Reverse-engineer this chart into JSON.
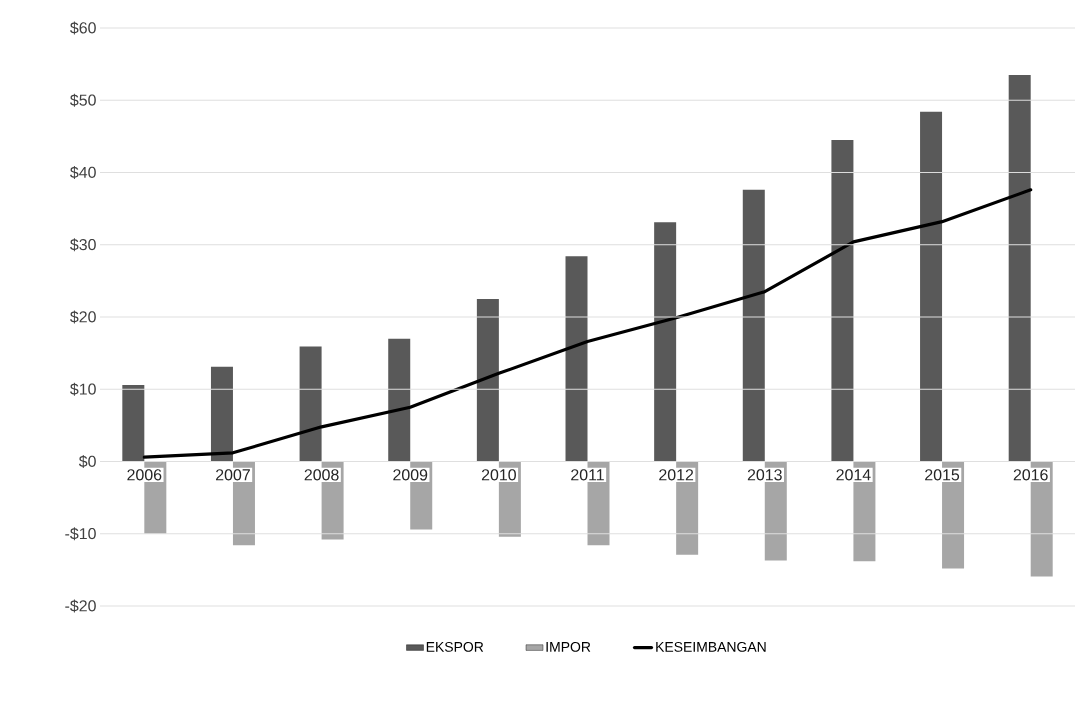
{
  "chart_data": {
    "type": "bar",
    "categories": [
      "2006",
      "2007",
      "2008",
      "2009",
      "2010",
      "2011",
      "2012",
      "2013",
      "2014",
      "2015",
      "2016"
    ],
    "series": [
      {
        "name": "EKSPOR",
        "color": "#595959",
        "values": [
          10.6,
          13.1,
          15.9,
          17.0,
          22.5,
          28.4,
          33.1,
          37.6,
          44.5,
          48.4,
          53.5
        ]
      },
      {
        "name": "IMPOR",
        "color": "#a6a6a6",
        "values": [
          -10.0,
          -11.6,
          -10.8,
          -9.4,
          -10.4,
          -11.6,
          -12.9,
          -13.7,
          -13.8,
          -14.8,
          -15.9
        ]
      },
      {
        "name": "KESEIMBANGAN",
        "type": "line",
        "color": "#000000",
        "values": [
          0.6,
          1.2,
          4.8,
          7.5,
          12.2,
          16.6,
          19.9,
          23.5,
          30.4,
          33.2,
          37.6
        ]
      }
    ],
    "ylim": [
      -20,
      60
    ],
    "yticks": [
      {
        "value": -20,
        "label": "-$20"
      },
      {
        "value": -10,
        "label": "-$10"
      },
      {
        "value": 0,
        "label": "$0"
      },
      {
        "value": 10,
        "label": "$10"
      },
      {
        "value": 20,
        "label": "$20"
      },
      {
        "value": 30,
        "label": "$30"
      },
      {
        "value": 40,
        "label": "$40"
      },
      {
        "value": 50,
        "label": "$50"
      },
      {
        "value": 60,
        "label": "$60"
      }
    ],
    "grid": "y",
    "legend": "bottom"
  }
}
